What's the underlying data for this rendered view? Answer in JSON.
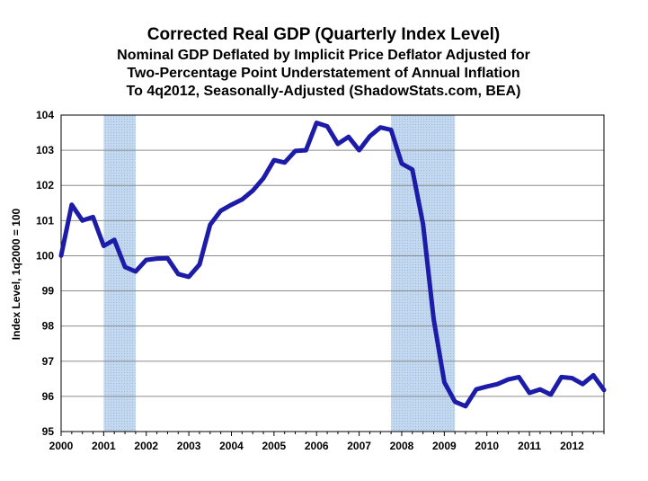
{
  "chart_data": {
    "type": "line",
    "title": "Corrected Real GDP (Quarterly Index Level)",
    "subtitle_lines": [
      "Nominal GDP Deflated by Implicit Price Deflator Adjusted for",
      "Two-Percentage Point Understatement of Annual Inflation",
      "To 4q2012, Seasonally-Adjusted (ShadowStats.com, BEA)"
    ],
    "xlabel": "",
    "ylabel": "Index Level, 1q2000 = 100",
    "ylim": [
      95,
      104
    ],
    "yticks": [
      "95",
      "96",
      "97",
      "98",
      "99",
      "100",
      "101",
      "102",
      "103",
      "104"
    ],
    "xticks": [
      "2000",
      "2001",
      "2002",
      "2003",
      "2004",
      "2005",
      "2006",
      "2007",
      "2008",
      "2009",
      "2010",
      "2011",
      "2012"
    ],
    "grid": true,
    "line_color": "#1c1ca8",
    "recession_fill": "#c3d8ee",
    "recession_pattern": "#9bbde0",
    "recessions": [
      {
        "start": "2001q1",
        "end": "2001q4"
      },
      {
        "start": "2007q4",
        "end": "2009q2"
      }
    ],
    "series": [
      {
        "x": [
          "2000q1",
          "2000q2",
          "2000q3",
          "2000q4",
          "2001q1",
          "2001q2",
          "2001q3",
          "2001q4",
          "2002q1",
          "2002q2",
          "2002q3",
          "2002q4",
          "2003q1",
          "2003q2",
          "2003q3",
          "2003q4",
          "2004q1",
          "2004q2",
          "2004q3",
          "2004q4",
          "2005q1",
          "2005q2",
          "2005q3",
          "2005q4",
          "2006q1",
          "2006q2",
          "2006q3",
          "2006q4",
          "2007q1",
          "2007q2",
          "2007q3",
          "2007q4",
          "2008q1",
          "2008q2",
          "2008q3",
          "2008q4",
          "2009q1",
          "2009q2",
          "2009q3",
          "2009q4",
          "2010q1",
          "2010q2",
          "2010q3",
          "2010q4",
          "2011q1",
          "2011q2",
          "2011q3",
          "2011q4",
          "2012q1",
          "2012q2",
          "2012q3",
          "2012q4"
        ],
        "values": [
          100.0,
          101.45,
          101.0,
          101.1,
          100.28,
          100.45,
          99.68,
          99.55,
          99.88,
          99.92,
          99.93,
          99.48,
          99.4,
          99.75,
          100.88,
          101.28,
          101.45,
          101.6,
          101.85,
          102.2,
          102.72,
          102.65,
          102.98,
          103.0,
          103.78,
          103.68,
          103.18,
          103.38,
          103.0,
          103.4,
          103.65,
          103.58,
          102.62,
          102.45,
          100.9,
          98.2,
          96.4,
          95.85,
          95.72,
          96.2,
          96.28,
          96.35,
          96.48,
          96.55,
          96.1,
          96.2,
          96.05,
          96.55,
          96.52,
          96.35,
          96.6,
          96.18
        ]
      }
    ]
  }
}
